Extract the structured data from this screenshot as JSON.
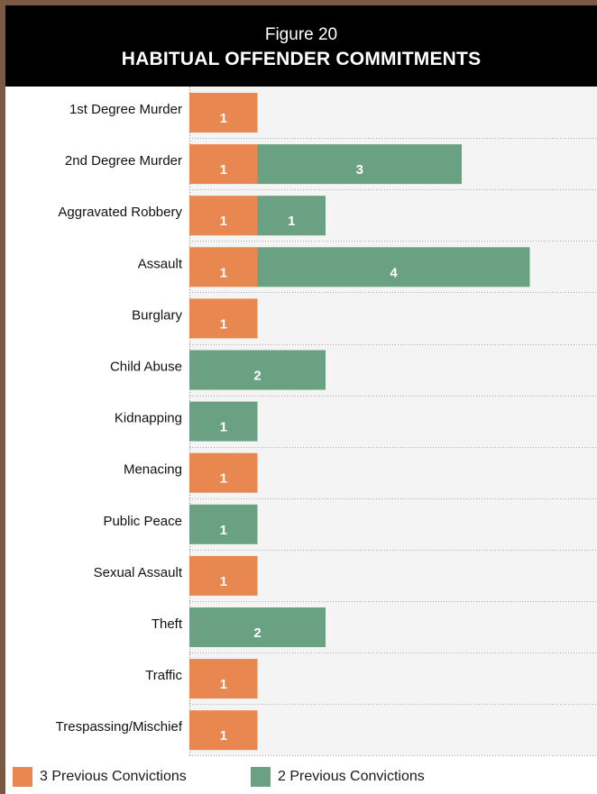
{
  "figure": {
    "number_label": "Figure 20",
    "title": "HABITUAL OFFENDER COMMITMENTS"
  },
  "legend": {
    "items": [
      {
        "label": "3 Previous Convictions",
        "color": "#e8874f"
      },
      {
        "label": "2 Previous Convictions",
        "color": "#6aa182"
      }
    ]
  },
  "chart_data": {
    "type": "bar",
    "orientation": "horizontal",
    "stacked": true,
    "title": "HABITUAL OFFENDER COMMITMENTS",
    "categories": [
      "1st Degree Murder",
      "2nd Degree Murder",
      "Aggravated Robbery",
      "Assault",
      "Burglary",
      "Child Abuse",
      "Kidnapping",
      "Menacing",
      "Public Peace",
      "Sexual Assault",
      "Theft",
      "Traffic",
      "Trespassing/Mischief"
    ],
    "series": [
      {
        "name": "3 Previous Convictions",
        "color": "#e8874f",
        "values": [
          1,
          1,
          1,
          1,
          1,
          0,
          0,
          1,
          0,
          1,
          0,
          1,
          1
        ]
      },
      {
        "name": "2 Previous Convictions",
        "color": "#6aa182",
        "values": [
          0,
          3,
          1,
          4,
          0,
          2,
          1,
          0,
          1,
          0,
          2,
          0,
          0
        ]
      }
    ],
    "xlim": [
      0,
      6
    ],
    "grid": true,
    "legend_position": "bottom"
  }
}
